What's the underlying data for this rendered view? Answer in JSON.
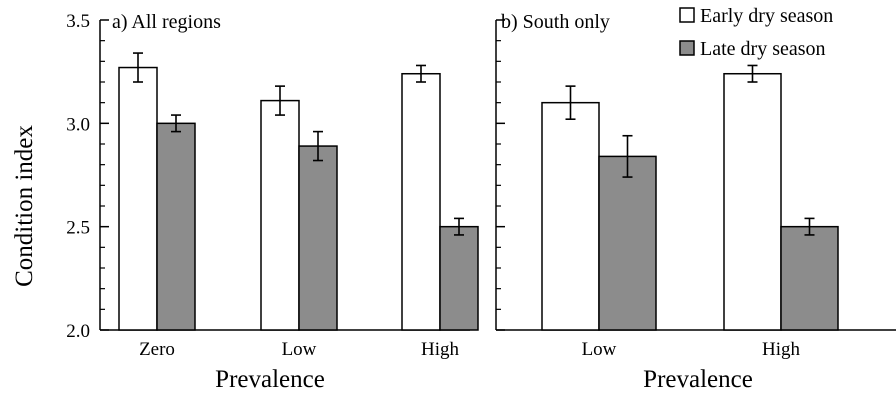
{
  "chart_data": [
    {
      "type": "bar",
      "title": "a) All regions",
      "xlabel": "Prevalence",
      "ylabel": "Condition index",
      "ylim": [
        2.0,
        3.5
      ],
      "yticks": [
        2.0,
        2.5,
        3.0,
        3.5
      ],
      "ytick_labels": [
        "2.0",
        "2.5",
        "3.0",
        "3.5"
      ],
      "categories": [
        "Zero",
        "Low",
        "High"
      ],
      "series": [
        {
          "name": "Early dry season",
          "color": "#ffffff",
          "values": [
            3.27,
            3.11,
            3.24
          ],
          "errors": [
            0.07,
            0.07,
            0.04
          ]
        },
        {
          "name": "Late dry season",
          "color": "#8c8c8c",
          "values": [
            3.0,
            2.89,
            2.5
          ],
          "errors": [
            0.04,
            0.07,
            0.04
          ]
        }
      ]
    },
    {
      "type": "bar",
      "title": "b) South only",
      "xlabel": "Prevalence",
      "ylim": [
        2.0,
        3.5
      ],
      "yticks": [
        2.0,
        2.5,
        3.0,
        3.5
      ],
      "categories": [
        "Low",
        "High"
      ],
      "series": [
        {
          "name": "Early dry season",
          "color": "#ffffff",
          "values": [
            3.1,
            3.24
          ],
          "errors": [
            0.08,
            0.04
          ]
        },
        {
          "name": "Late dry season",
          "color": "#8c8c8c",
          "values": [
            2.84,
            2.5
          ],
          "errors": [
            0.1,
            0.04
          ]
        }
      ],
      "legend": {
        "position": "top-right",
        "entries": [
          {
            "label": "Early dry season",
            "color": "#ffffff"
          },
          {
            "label": "Late dry season",
            "color": "#8c8c8c"
          }
        ]
      }
    }
  ]
}
